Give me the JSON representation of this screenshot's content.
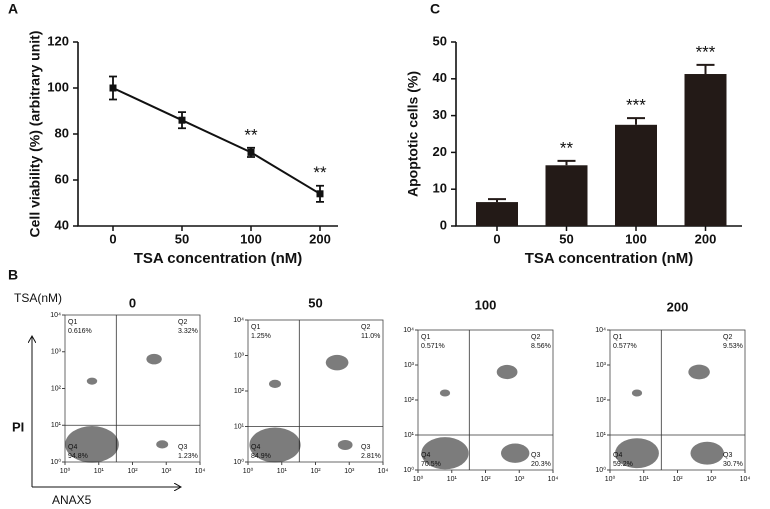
{
  "chart_data": [
    {
      "type": "line",
      "panel_label": "A",
      "x_label": "TSA concentration (nM)",
      "y_label": "Cell viability (%) (arbitrary unit)",
      "categories": [
        "0",
        "50",
        "100",
        "200"
      ],
      "values": [
        100,
        86,
        72,
        54
      ],
      "errors": [
        5,
        3.5,
        2,
        3.5
      ],
      "annotations": [
        null,
        null,
        "**",
        "**"
      ],
      "color": "#111111",
      "ylim": [
        40,
        120
      ],
      "yticks": [
        40,
        60,
        80,
        100,
        120
      ]
    },
    {
      "type": "bar",
      "panel_label": "C",
      "x_label": "TSA concentration (nM)",
      "y_label": "Apoptotic cells (%)",
      "categories": [
        "0",
        "50",
        "100",
        "200"
      ],
      "values": [
        6.5,
        16.5,
        27.5,
        41.3
      ],
      "errors": [
        0.8,
        1.2,
        1.8,
        2.5
      ],
      "annotations": [
        null,
        "**",
        "***",
        "***"
      ],
      "color": "#231a17",
      "ylim": [
        0,
        50
      ],
      "yticks": [
        0,
        10,
        20,
        30,
        40,
        50
      ]
    },
    {
      "type": "flow",
      "panel_label": "B",
      "treatment_label": "TSA(nM)",
      "x_label": "ANAX5",
      "y_label": "PI",
      "log": true,
      "xlim": [
        1,
        10000
      ],
      "ylim": [
        1,
        10000
      ],
      "xticks": [
        {
          "value": 1,
          "label": "10⁰"
        },
        {
          "value": 10,
          "label": "10¹"
        },
        {
          "value": 100,
          "label": "10²"
        },
        {
          "value": 1000,
          "label": "10³"
        },
        {
          "value": 10000,
          "label": "10⁴"
        }
      ],
      "yticks": [
        {
          "value": 1,
          "label": "10⁰"
        },
        {
          "value": 10,
          "label": "10¹"
        },
        {
          "value": 100,
          "label": "10²"
        },
        {
          "value": 1000,
          "label": "10³"
        },
        {
          "value": 10000,
          "label": "10⁴"
        }
      ],
      "quadrants": [
        "Q1",
        "Q2",
        "Q3",
        "Q4"
      ],
      "panels": [
        {
          "title": "0",
          "values": [
            0.616,
            3.32,
            1.23,
            94.8
          ],
          "value_labels": [
            "0.616%",
            "3.32%",
            "1.23%",
            "94.8%"
          ]
        },
        {
          "title": "50",
          "values": [
            1.25,
            11.0,
            2.81,
            84.9
          ],
          "value_labels": [
            "1.25%",
            "11.0%",
            "2.81%",
            "84.9%"
          ]
        },
        {
          "title": "100",
          "values": [
            0.571,
            8.56,
            20.3,
            70.5
          ],
          "value_labels": [
            "0.571%",
            "8.56%",
            "20.3%",
            "70.5%"
          ]
        },
        {
          "title": "200",
          "values": [
            0.577,
            9.53,
            30.7,
            59.2
          ],
          "value_labels": [
            "0.577%",
            "9.53%",
            "30.7%",
            "59.2%"
          ]
        }
      ]
    }
  ]
}
